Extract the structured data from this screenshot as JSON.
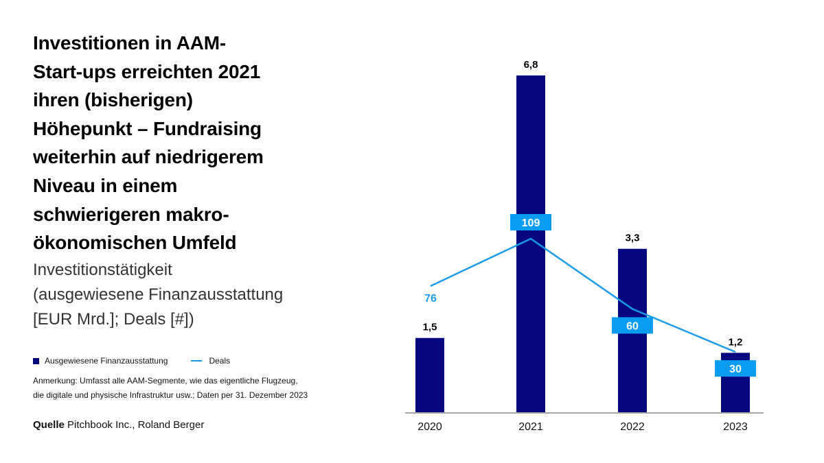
{
  "title_lines": [
    "Investitionen in AAM-",
    "Start-ups erreichten 2021",
    "ihren (bisherigen)",
    "Höhepunkt – Fundraising",
    "weiterhin auf niedrigerem",
    "Niveau in einem",
    "schwierigeren makro-",
    "ökonomischen Umfeld"
  ],
  "subtitle_lines": [
    "Investitionstätigkeit",
    "(ausgewiesene Finanzausstattung",
    "[EUR Mrd.]; Deals [#])"
  ],
  "legend": {
    "bars": "Ausgewiesene Finanzausstattung",
    "line": "Deals"
  },
  "note_lines": [
    "Anmerkung: Umfasst alle AAM-Segmente, wie das eigentliche Flugzeug,",
    "die digitale und physische Infrastruktur usw.; Daten per 31. Dezember 2023"
  ],
  "source": {
    "label": "Quelle",
    "text": "Pitchbook Inc., Roland Berger"
  },
  "chart_data": {
    "type": "bar+line",
    "categories": [
      "2020",
      "2021",
      "2022",
      "2023"
    ],
    "series": [
      {
        "name": "Ausgewiesene Finanzausstattung",
        "type": "bar",
        "values": [
          1.5,
          6.8,
          3.3,
          1.2
        ],
        "labels": [
          "1,5",
          "6,8",
          "3,3",
          "1,2"
        ],
        "color": "#06067f"
      },
      {
        "name": "Deals",
        "type": "line",
        "values": [
          76,
          109,
          60,
          30
        ],
        "labels": [
          "76",
          "109",
          "60",
          "30"
        ],
        "color": "#1a9be8"
      }
    ],
    "grid": false,
    "legend_position": "bottom-left"
  }
}
